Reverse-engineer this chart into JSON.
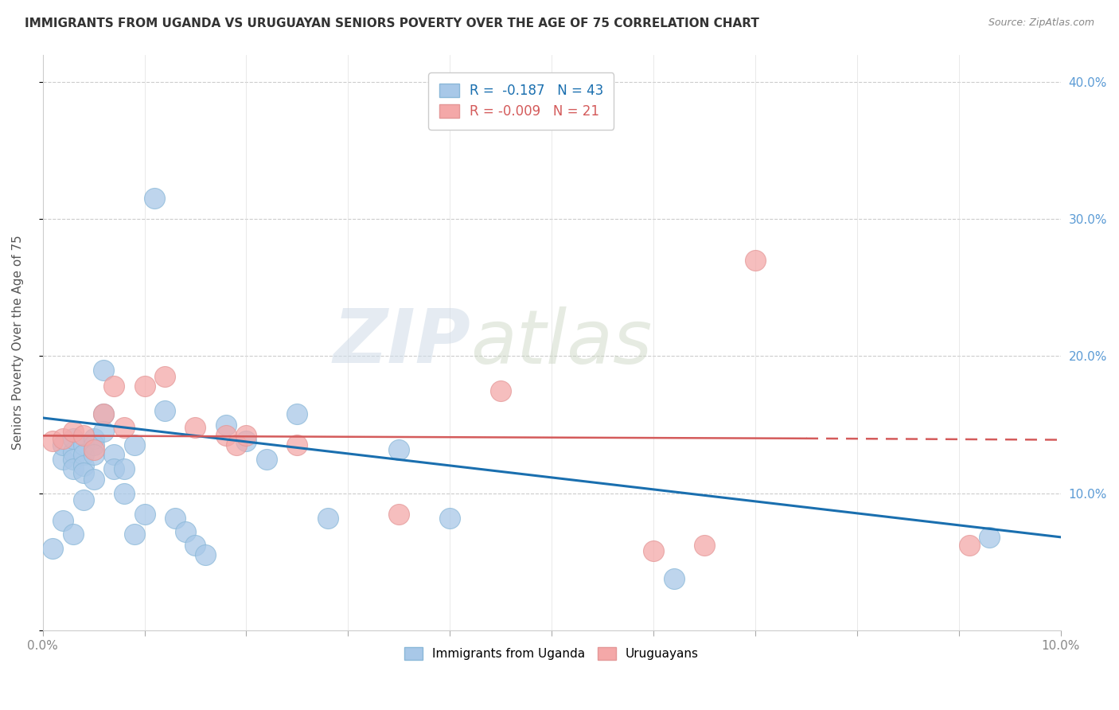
{
  "title": "IMMIGRANTS FROM UGANDA VS URUGUAYAN SENIORS POVERTY OVER THE AGE OF 75 CORRELATION CHART",
  "source": "Source: ZipAtlas.com",
  "ylabel": "Seniors Poverty Over the Age of 75",
  "xlim": [
    0.0,
    0.1
  ],
  "ylim": [
    0.0,
    0.42
  ],
  "r_uganda": -0.187,
  "n_uganda": 43,
  "r_uruguayan": -0.009,
  "n_uruguayan": 21,
  "legend_label_uganda": "Immigrants from Uganda",
  "legend_label_uruguayan": "Uruguayans",
  "blue_color": "#a8c8e8",
  "blue_line": "#1a6faf",
  "pink_color": "#f4a8a8",
  "pink_line": "#d45b5b",
  "watermark_zip": "ZIP",
  "watermark_atlas": "atlas",
  "uganda_x": [
    0.001,
    0.002,
    0.002,
    0.002,
    0.003,
    0.003,
    0.003,
    0.003,
    0.003,
    0.004,
    0.004,
    0.004,
    0.004,
    0.004,
    0.005,
    0.005,
    0.005,
    0.005,
    0.006,
    0.006,
    0.006,
    0.007,
    0.007,
    0.008,
    0.008,
    0.009,
    0.009,
    0.01,
    0.011,
    0.012,
    0.013,
    0.014,
    0.015,
    0.016,
    0.018,
    0.02,
    0.022,
    0.025,
    0.028,
    0.035,
    0.04,
    0.062,
    0.093
  ],
  "uganda_y": [
    0.06,
    0.125,
    0.135,
    0.08,
    0.13,
    0.125,
    0.14,
    0.118,
    0.07,
    0.135,
    0.128,
    0.12,
    0.115,
    0.095,
    0.14,
    0.135,
    0.128,
    0.11,
    0.19,
    0.158,
    0.145,
    0.128,
    0.118,
    0.118,
    0.1,
    0.135,
    0.07,
    0.085,
    0.315,
    0.16,
    0.082,
    0.072,
    0.062,
    0.055,
    0.15,
    0.138,
    0.125,
    0.158,
    0.082,
    0.132,
    0.082,
    0.038,
    0.068
  ],
  "uruguayan_x": [
    0.001,
    0.002,
    0.003,
    0.004,
    0.005,
    0.006,
    0.007,
    0.008,
    0.01,
    0.012,
    0.015,
    0.018,
    0.019,
    0.02,
    0.025,
    0.035,
    0.045,
    0.06,
    0.065,
    0.07,
    0.091
  ],
  "uruguayan_y": [
    0.138,
    0.14,
    0.145,
    0.142,
    0.132,
    0.158,
    0.178,
    0.148,
    0.178,
    0.185,
    0.148,
    0.142,
    0.135,
    0.142,
    0.135,
    0.085,
    0.175,
    0.058,
    0.062,
    0.27,
    0.062
  ]
}
